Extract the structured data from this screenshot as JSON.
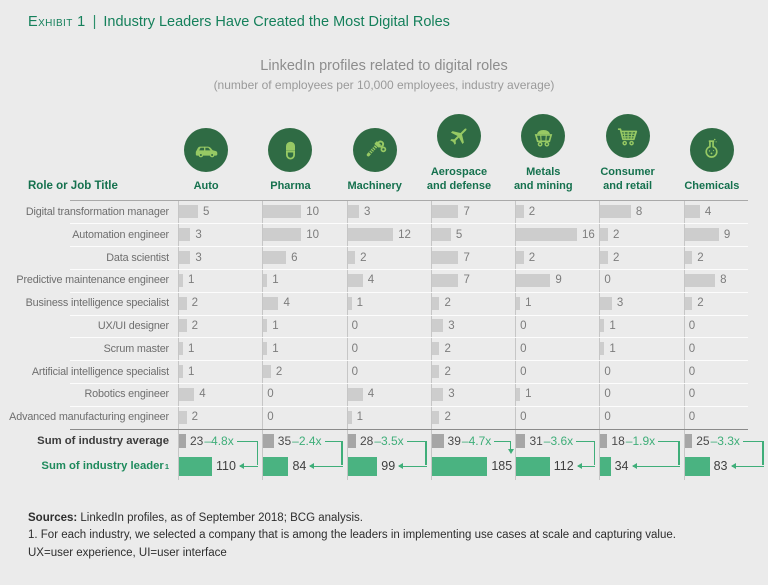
{
  "exhibit": {
    "label": "Exhibit 1",
    "separator": "|",
    "title": "Industry Leaders Have Created the Most Digital Roles"
  },
  "chart_title": "LinkedIn profiles related to digital roles",
  "chart_subtitle": "(number of employees per 10,000 employees, industry average)",
  "row_header": "Role or Job Title",
  "chart_data": {
    "type": "bar",
    "unit": "employees per 10,000 employees, industry average",
    "roles": [
      "Digital transformation manager",
      "Automation engineer",
      "Data scientist",
      "Predictive maintenance engineer",
      "Business intelligence specialist",
      "UX/UI designer",
      "Scrum master",
      "Artificial intelligence specialist",
      "Robotics engineer",
      "Advanced manufacturing engineer"
    ],
    "industries": [
      {
        "label_lines": [
          "Auto"
        ],
        "icon": "car-icon",
        "values": [
          5,
          3,
          3,
          1,
          2,
          2,
          1,
          1,
          4,
          2
        ],
        "sum_average": 23,
        "multiplier": "–4.8x",
        "sum_leader": 110,
        "leader_arrow": "left"
      },
      {
        "label_lines": [
          "Pharma"
        ],
        "icon": "pill-icon",
        "values": [
          10,
          10,
          6,
          1,
          4,
          1,
          1,
          2,
          0,
          0
        ],
        "sum_average": 35,
        "multiplier": "–2.4x",
        "sum_leader": 84,
        "leader_arrow": "left"
      },
      {
        "label_lines": [
          "Machinery"
        ],
        "icon": "bolt-icon",
        "values": [
          3,
          12,
          2,
          4,
          1,
          0,
          0,
          0,
          4,
          1
        ],
        "sum_average": 28,
        "multiplier": "–3.5x",
        "sum_leader": 99,
        "leader_arrow": "left"
      },
      {
        "label_lines": [
          "Aerospace",
          "and defense"
        ],
        "icon": "plane-icon",
        "values": [
          7,
          5,
          7,
          7,
          2,
          3,
          2,
          2,
          3,
          2
        ],
        "sum_average": 39,
        "multiplier": "–4.7x",
        "sum_leader": 185,
        "leader_arrow": "down"
      },
      {
        "label_lines": [
          "Metals",
          "and mining"
        ],
        "icon": "mine-cart-icon",
        "values": [
          2,
          16,
          2,
          9,
          1,
          0,
          0,
          0,
          1,
          0
        ],
        "sum_average": 31,
        "multiplier": "–3.6x",
        "sum_leader": 112,
        "leader_arrow": "left"
      },
      {
        "label_lines": [
          "Consumer",
          "and retail"
        ],
        "icon": "shopping-cart-icon",
        "values": [
          8,
          2,
          2,
          0,
          3,
          1,
          1,
          0,
          0,
          0
        ],
        "sum_average": 18,
        "multiplier": "–1.9x",
        "sum_leader": 34,
        "leader_arrow": "left"
      },
      {
        "label_lines": [
          "Chemicals"
        ],
        "icon": "flask-icon",
        "values": [
          4,
          9,
          2,
          8,
          2,
          0,
          0,
          0,
          0,
          0
        ],
        "sum_average": 25,
        "multiplier": "–3.3x",
        "sum_leader": 83,
        "leader_arrow": "left"
      }
    ]
  },
  "summary": {
    "average_label": "Sum of industry average",
    "leader_label": "Sum of industry leader",
    "leader_superscript": "1"
  },
  "footer": {
    "sources_label": "Sources:",
    "sources_text": " LinkedIn profiles, as of September 2018; BCG analysis.",
    "note1": "1. For each industry, we selected a company that is among the leaders in implementing use cases at scale and capturing value.",
    "note2": "UX=user experience, UI=user interface"
  },
  "colors": {
    "title_green": "#15805B",
    "icon_circle": "#2F6B44",
    "icon_glyph": "#97C964",
    "row_bar": "#CDCDCD",
    "average_bar": "#A6A6A6",
    "leader_bar": "#4AB381",
    "arrow_green": "#3FAE79",
    "background": "#EBEBEB"
  }
}
